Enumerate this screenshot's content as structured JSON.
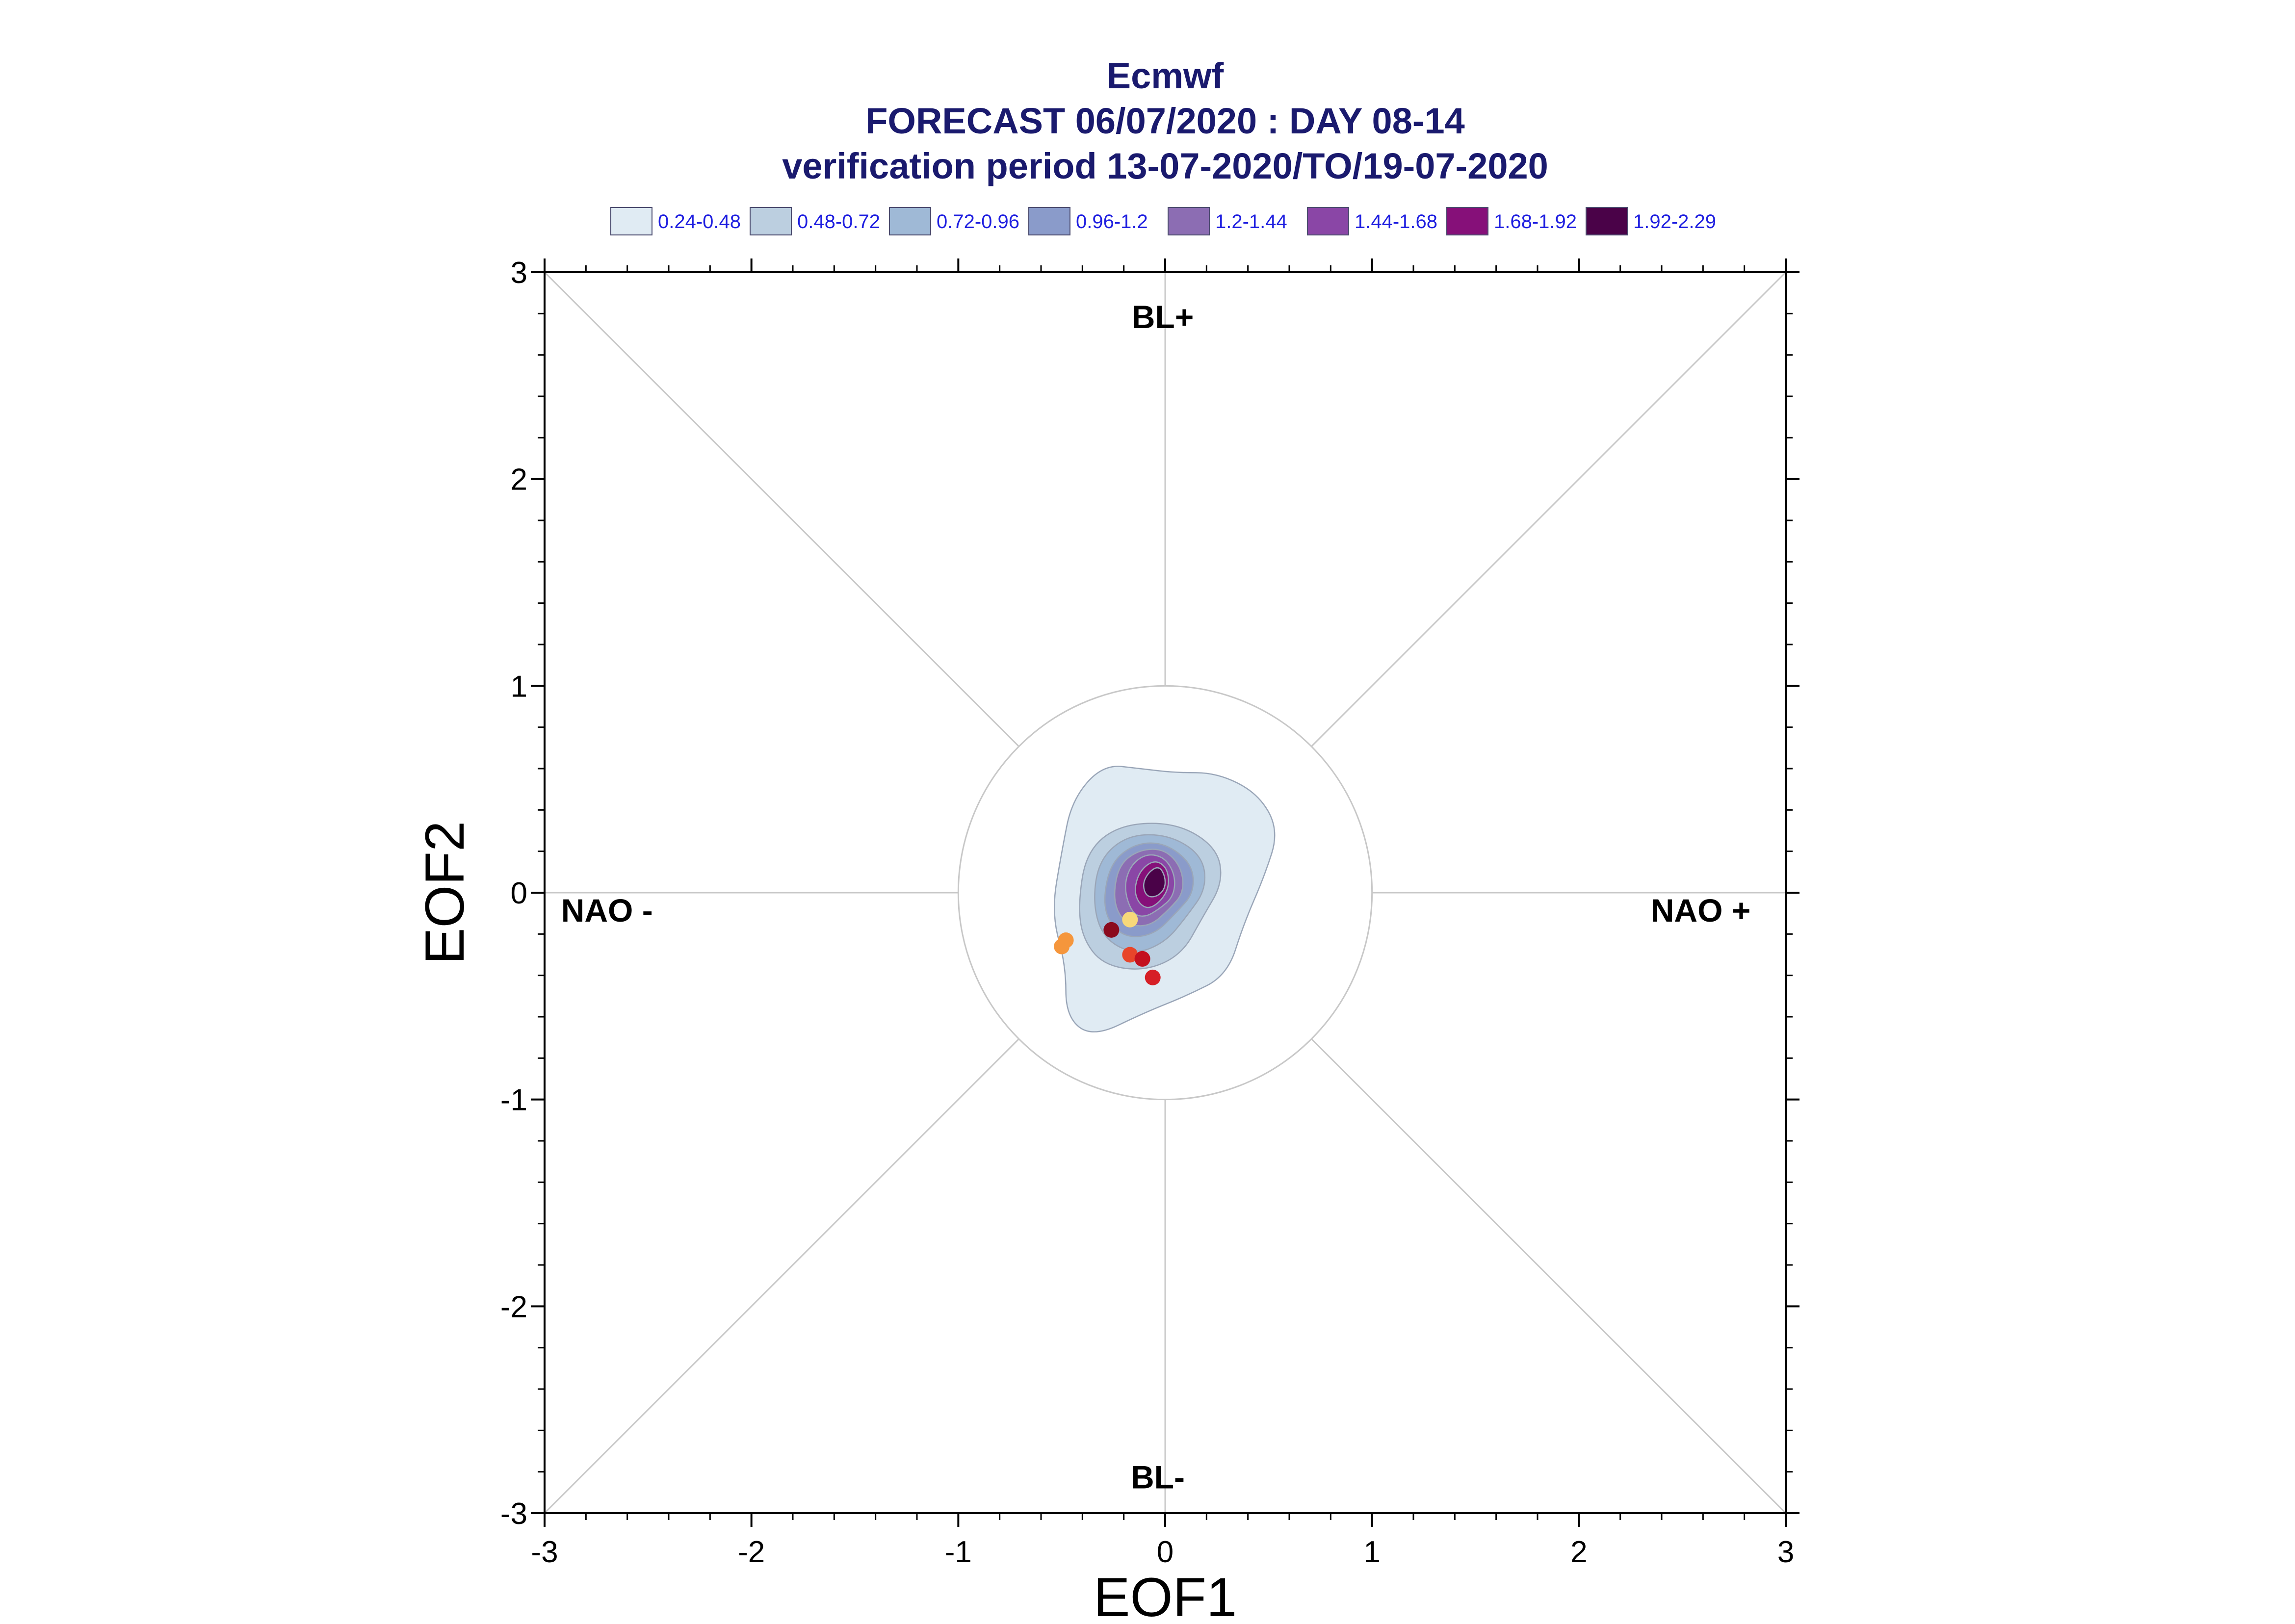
{
  "chart_data": {
    "type": "scatter",
    "title_lines": [
      "Ecmwf",
      "FORECAST 06/07/2020 : DAY 08-14",
      "verification period 13-07-2020/TO/19-07-2020"
    ],
    "xlabel": "EOF1",
    "ylabel": "EOF2",
    "xlim": [
      -3,
      3
    ],
    "ylim": [
      -3,
      3
    ],
    "x_ticks": [
      "-3",
      "-2",
      "-1",
      "0",
      "1",
      "2",
      "3"
    ],
    "y_ticks": [
      "-3",
      "-2",
      "-1",
      "0",
      "1",
      "2",
      "3"
    ],
    "regime_labels": {
      "top": "BL+",
      "bottom": "BL-",
      "left": "NAO -",
      "right": "NAO +"
    },
    "reference_circle_radius": 1,
    "density_legend": [
      {
        "label": "0.24-0.48",
        "color": "#e0ebf3"
      },
      {
        "label": "0.48-0.72",
        "color": "#bccfe0"
      },
      {
        "label": "0.72-0.96",
        "color": "#9fb9d6"
      },
      {
        "label": "0.96-1.2",
        "color": "#8a9bca"
      },
      {
        "label": "1.2-1.44",
        "color": "#8c6db3"
      },
      {
        "label": "1.44-1.68",
        "color": "#8a46a6"
      },
      {
        "label": "1.68-1.92",
        "color": "#861079"
      },
      {
        "label": "1.92-2.29",
        "color": "#4a0248"
      }
    ],
    "density_contours": [
      {
        "level": "0.24-0.48",
        "points": [
          [
            -0.55,
            -0.1
          ],
          [
            -0.5,
            0.2
          ],
          [
            -0.45,
            0.45
          ],
          [
            -0.3,
            0.62
          ],
          [
            -0.12,
            0.6
          ],
          [
            0.05,
            0.58
          ],
          [
            0.25,
            0.58
          ],
          [
            0.45,
            0.48
          ],
          [
            0.55,
            0.3
          ],
          [
            0.48,
            0.08
          ],
          [
            0.38,
            -0.15
          ],
          [
            0.3,
            -0.4
          ],
          [
            0.1,
            -0.5
          ],
          [
            -0.1,
            -0.58
          ],
          [
            -0.35,
            -0.7
          ],
          [
            -0.48,
            -0.6
          ],
          [
            -0.48,
            -0.35
          ]
        ]
      },
      {
        "level": "0.48-0.72",
        "points": [
          [
            -0.42,
            -0.05
          ],
          [
            -0.38,
            0.2
          ],
          [
            -0.22,
            0.33
          ],
          [
            0.05,
            0.34
          ],
          [
            0.25,
            0.22
          ],
          [
            0.28,
            0.05
          ],
          [
            0.18,
            -0.12
          ],
          [
            0.08,
            -0.3
          ],
          [
            -0.1,
            -0.38
          ],
          [
            -0.3,
            -0.35
          ],
          [
            -0.4,
            -0.22
          ]
        ]
      },
      {
        "level": "0.72-0.96",
        "points": [
          [
            -0.35,
            -0.05
          ],
          [
            -0.32,
            0.16
          ],
          [
            -0.18,
            0.28
          ],
          [
            0.02,
            0.28
          ],
          [
            0.18,
            0.18
          ],
          [
            0.2,
            0.02
          ],
          [
            0.1,
            -0.12
          ],
          [
            0.0,
            -0.24
          ],
          [
            -0.15,
            -0.3
          ],
          [
            -0.3,
            -0.22
          ]
        ]
      },
      {
        "level": "0.96-1.2",
        "points": [
          [
            -0.3,
            -0.03
          ],
          [
            -0.26,
            0.15
          ],
          [
            -0.14,
            0.24
          ],
          [
            0.0,
            0.24
          ],
          [
            0.13,
            0.14
          ],
          [
            0.14,
            0.0
          ],
          [
            0.05,
            -0.1
          ],
          [
            -0.05,
            -0.2
          ],
          [
            -0.18,
            -0.22
          ],
          [
            -0.27,
            -0.15
          ]
        ]
      },
      {
        "level": "1.2-1.44",
        "points": [
          [
            -0.25,
            0.0
          ],
          [
            -0.22,
            0.14
          ],
          [
            -0.12,
            0.21
          ],
          [
            0.0,
            0.21
          ],
          [
            0.08,
            0.12
          ],
          [
            0.09,
            0.0
          ],
          [
            0.02,
            -0.08
          ],
          [
            -0.07,
            -0.16
          ],
          [
            -0.17,
            -0.16
          ],
          [
            -0.23,
            -0.1
          ]
        ]
      },
      {
        "level": "1.44-1.68",
        "points": [
          [
            -0.2,
            0.02
          ],
          [
            -0.17,
            0.13
          ],
          [
            -0.09,
            0.19
          ],
          [
            0.0,
            0.17
          ],
          [
            0.05,
            0.08
          ],
          [
            0.04,
            -0.02
          ],
          [
            -0.03,
            -0.08
          ],
          [
            -0.1,
            -0.12
          ],
          [
            -0.16,
            -0.1
          ]
        ]
      },
      {
        "level": "1.68-1.92",
        "points": [
          [
            -0.15,
            0.02
          ],
          [
            -0.12,
            0.11
          ],
          [
            -0.05,
            0.16
          ],
          [
            0.01,
            0.12
          ],
          [
            0.02,
            0.03
          ],
          [
            -0.02,
            -0.04
          ],
          [
            -0.08,
            -0.08
          ],
          [
            -0.13,
            -0.05
          ]
        ]
      },
      {
        "level": "1.92-2.29",
        "points": [
          [
            -0.11,
            0.04
          ],
          [
            -0.08,
            0.1
          ],
          [
            -0.03,
            0.13
          ],
          [
            0.0,
            0.08
          ],
          [
            0.0,
            0.02
          ],
          [
            -0.04,
            -0.02
          ],
          [
            -0.09,
            -0.02
          ]
        ]
      }
    ],
    "points": [
      {
        "x": -0.48,
        "y": -0.23,
        "color": "#f5963c"
      },
      {
        "x": -0.5,
        "y": -0.26,
        "color": "#f5963c"
      },
      {
        "x": -0.17,
        "y": -0.13,
        "color": "#f7d87a"
      },
      {
        "x": -0.26,
        "y": -0.18,
        "color": "#8b0a1e"
      },
      {
        "x": -0.17,
        "y": -0.3,
        "color": "#e8452a"
      },
      {
        "x": -0.11,
        "y": -0.32,
        "color": "#c4101f"
      },
      {
        "x": -0.06,
        "y": -0.41,
        "color": "#d61f26"
      }
    ],
    "grid": false,
    "legend_position": "top"
  }
}
